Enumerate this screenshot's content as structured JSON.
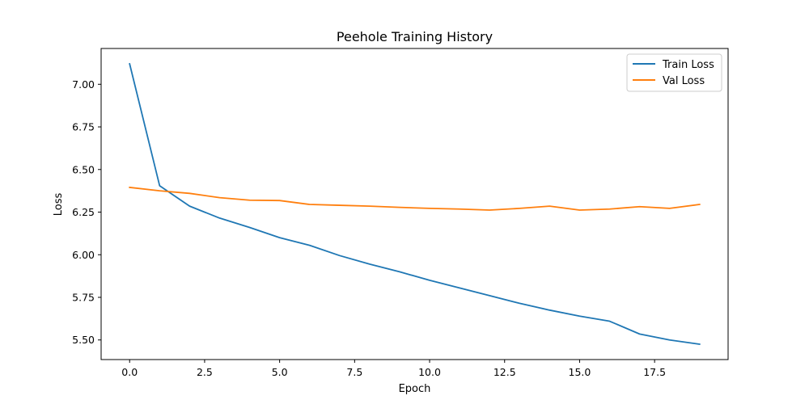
{
  "chart_data": {
    "type": "line",
    "title": "Peehole Training History",
    "xlabel": "Epoch",
    "ylabel": "Loss",
    "xlim": [
      -0.95,
      19.95
    ],
    "ylim": [
      5.385,
      7.21
    ],
    "xticks": [
      0.0,
      2.5,
      5.0,
      7.5,
      10.0,
      12.5,
      15.0,
      17.5
    ],
    "xtick_labels": [
      "0.0",
      "2.5",
      "5.0",
      "7.5",
      "10.0",
      "12.5",
      "15.0",
      "17.5"
    ],
    "yticks": [
      5.5,
      5.75,
      6.0,
      6.25,
      6.5,
      6.75,
      7.0
    ],
    "ytick_labels": [
      "5.50",
      "5.75",
      "6.00",
      "6.25",
      "6.50",
      "6.75",
      "7.00"
    ],
    "grid": false,
    "legend_position": "top-right",
    "x": [
      0,
      1,
      2,
      3,
      4,
      5,
      6,
      7,
      8,
      9,
      10,
      11,
      12,
      13,
      14,
      15,
      16,
      17,
      18,
      19
    ],
    "series": [
      {
        "name": "Train Loss",
        "color": "#1f77b4",
        "values": [
          7.12,
          6.405,
          6.285,
          6.215,
          6.16,
          6.1,
          6.055,
          5.995,
          5.945,
          5.9,
          5.85,
          5.805,
          5.76,
          5.715,
          5.675,
          5.64,
          5.61,
          5.535,
          5.5,
          5.475
        ]
      },
      {
        "name": "Val Loss",
        "color": "#ff7f0e",
        "values": [
          6.395,
          6.375,
          6.36,
          6.335,
          6.32,
          6.318,
          6.295,
          6.29,
          6.285,
          6.278,
          6.272,
          6.268,
          6.262,
          6.272,
          6.285,
          6.262,
          6.268,
          6.282,
          6.272,
          6.295
        ]
      }
    ]
  }
}
